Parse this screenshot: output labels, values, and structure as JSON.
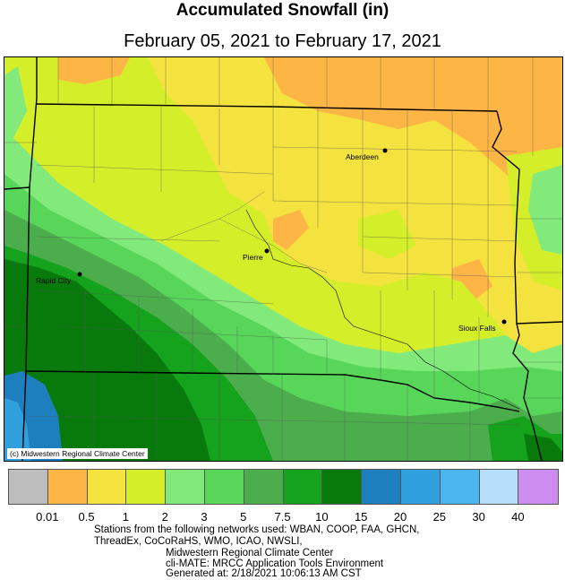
{
  "title": "Accumulated Snowfall (in)",
  "subtitle": "February 05, 2021 to February 17, 2021",
  "credit": "(c) Midwestern Regional Climate Center",
  "cities": [
    {
      "name": "Aberdeen"
    },
    {
      "name": "Pierre"
    },
    {
      "name": "Rapid City"
    },
    {
      "name": "Sioux Falls"
    }
  ],
  "legend": {
    "colors": [
      "#bdbdbd",
      "#fdb545",
      "#f4e23e",
      "#d5ee2a",
      "#82ea7b",
      "#58d659",
      "#4cad4d",
      "#15a21c",
      "#087a0c",
      "#1e7fbf",
      "#2f9fdd",
      "#4bb5ee",
      "#b6ddfa",
      "#cd8df0"
    ],
    "labels": [
      "0.01",
      "0.5",
      "1",
      "2",
      "3",
      "5",
      "7.5",
      "10",
      "15",
      "20",
      "25",
      "30",
      "40"
    ]
  },
  "footer": {
    "line1": "Stations from the following networks used: WBAN, COOP, FAA, GHCN,",
    "line2": "ThreadEx, CoCoRaHS, WMO, ICAO, NWSLI,",
    "line3": "Midwestern Regional Climate Center",
    "line4": "cli-MATE: MRCC Application Tools Environment",
    "line5": "Generated at: 2/18/2021 10:06:13 AM CST"
  }
}
